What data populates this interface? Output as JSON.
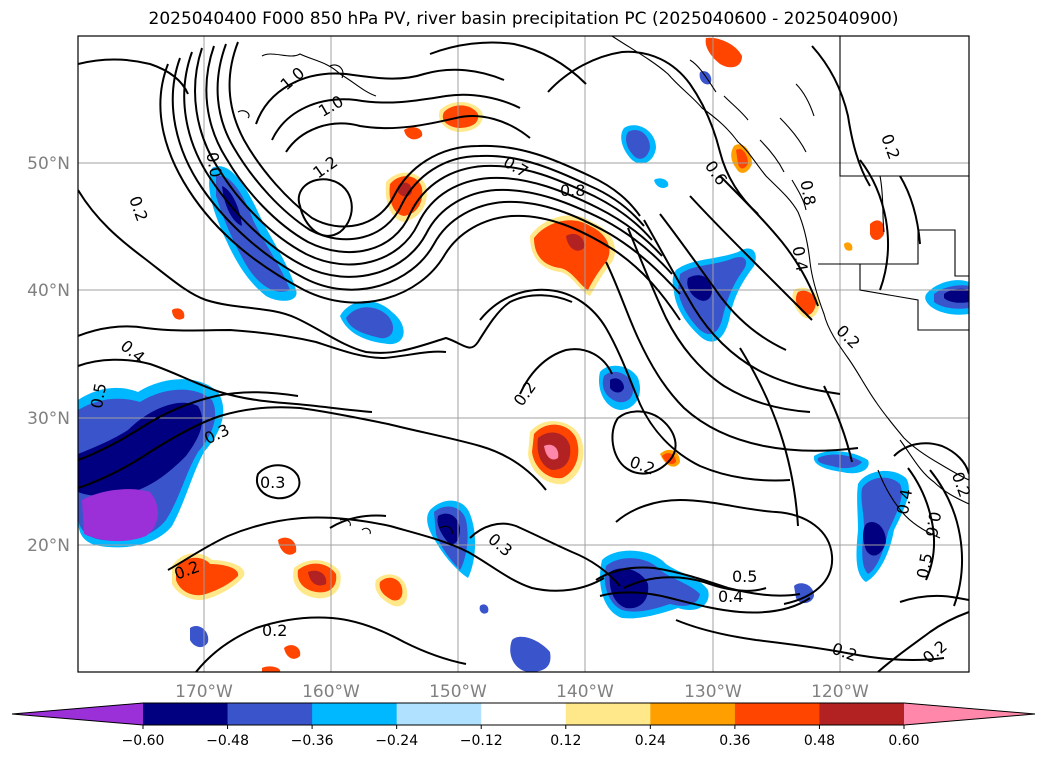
{
  "title": "2025040400 F000 850 hPa PV, river basin precipitation PC (2025040600 - 2025040900)",
  "lat_labels": [
    "50°N",
    "40°N",
    "30°N",
    "20°N"
  ],
  "lon_labels": [
    "170°W",
    "160°W",
    "150°W",
    "140°W",
    "130°W",
    "120°W"
  ],
  "colorbar": {
    "ticks": [
      "−0.60",
      "−0.48",
      "−0.36",
      "−0.24",
      "−0.12",
      "0.12",
      "0.24",
      "0.36",
      "0.48",
      "0.60"
    ],
    "bins": [
      {
        "color": "#9b30d9"
      },
      {
        "color": "#000080"
      },
      {
        "color": "#3a55cc"
      },
      {
        "color": "#00b8ff"
      },
      {
        "color": "#b0e2ff"
      },
      {
        "color": "#ffffff"
      },
      {
        "color": "#ffe88a"
      },
      {
        "color": "#ffa000"
      },
      {
        "color": "#ff4500"
      },
      {
        "color": "#b22222"
      },
      {
        "color": "#ff88aa"
      }
    ]
  },
  "contour_labels": [
    "1.0",
    "1.0",
    "1.2",
    "0.7",
    "0.8",
    "0.6",
    "0.2",
    "0.4",
    "0.2",
    "0.2",
    "0.4",
    "0.5",
    "0.3",
    "0.3",
    "0.2",
    "0.2",
    "0.3",
    "0.2",
    "0.5",
    "0.4",
    "0.2",
    "0.2",
    "0.4",
    "0.6",
    "0.5",
    "0.2",
    "0.2",
    "0.0",
    "0.8"
  ]
}
